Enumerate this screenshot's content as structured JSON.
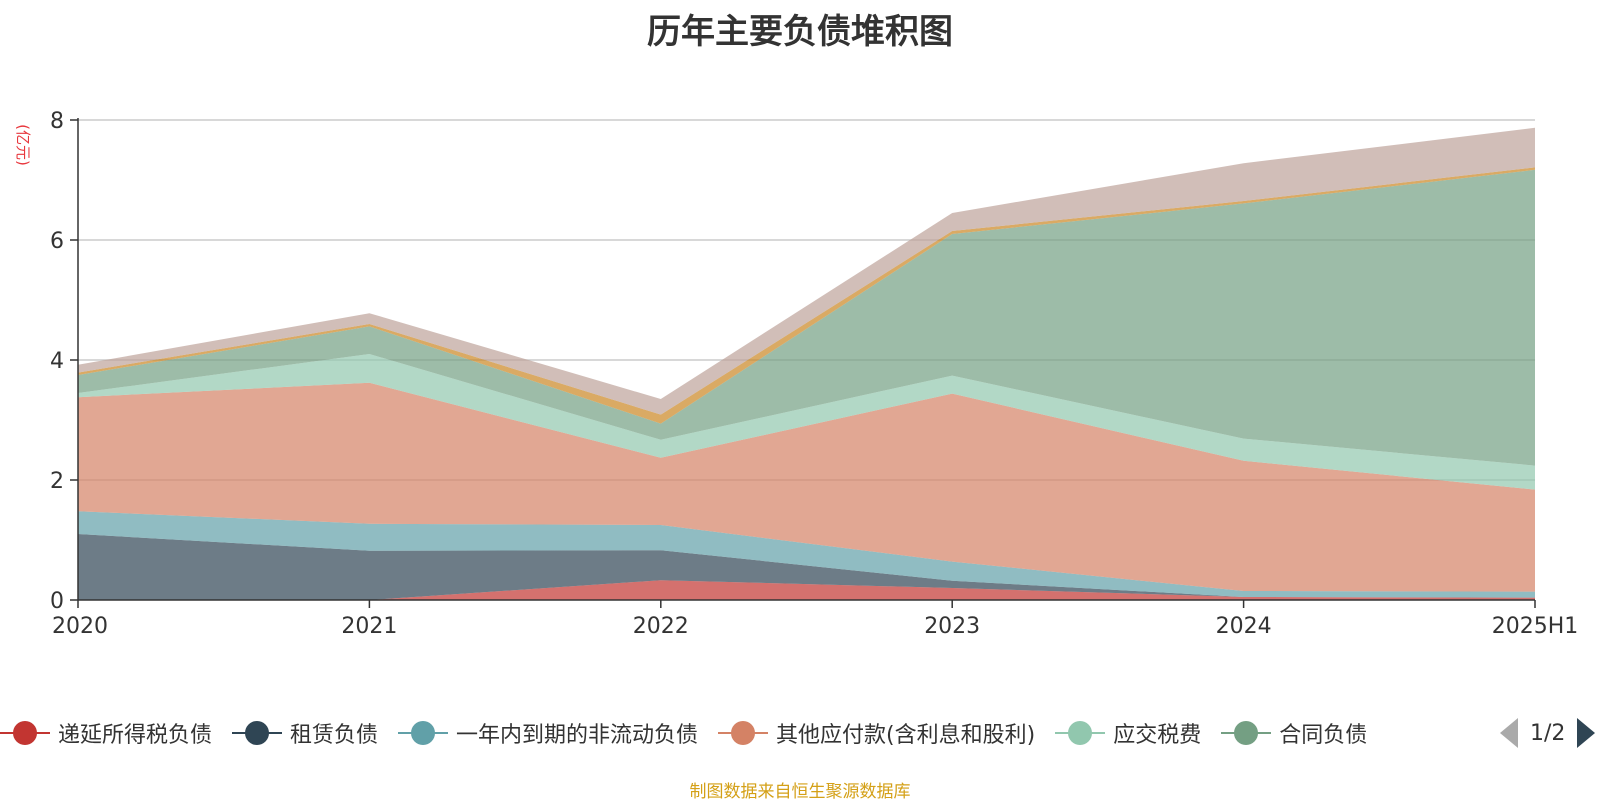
{
  "chart_data": {
    "type": "area",
    "stacked": true,
    "title": "历年主要负债堆积图",
    "ylabel": "(亿元)",
    "xlabel": "",
    "categories": [
      "2020",
      "2021",
      "2022",
      "2023",
      "2024",
      "2025H1"
    ],
    "ylim": [
      0,
      8
    ],
    "yticks": [
      0,
      2,
      4,
      6,
      8
    ],
    "grid": true,
    "legend_position": "bottom",
    "series": [
      {
        "name": "递延所得税负债",
        "color": "#c23531",
        "values": [
          0,
          0,
          0.33,
          0.2,
          0.05,
          0.04
        ]
      },
      {
        "name": "租赁负债",
        "color": "#2f4554",
        "values": [
          1.1,
          0.82,
          0.5,
          0.12,
          0.0,
          0.0
        ]
      },
      {
        "name": "一年内到期的非流动负债",
        "color": "#61a0a8",
        "values": [
          0.38,
          0.45,
          0.42,
          0.32,
          0.1,
          0.1
        ]
      },
      {
        "name": "其他应付款(含利息和股利)",
        "color": "#d48265",
        "values": [
          1.9,
          2.35,
          1.12,
          2.8,
          2.17,
          1.7
        ]
      },
      {
        "name": "应交税费",
        "color": "#91c7ae",
        "values": [
          0.07,
          0.48,
          0.3,
          0.3,
          0.37,
          0.4
        ]
      },
      {
        "name": "合同负债",
        "color": "#749f83",
        "values": [
          0.3,
          0.46,
          0.27,
          2.36,
          3.92,
          4.93
        ]
      },
      {
        "name": "",
        "color": "#ca8622",
        "values": [
          0.04,
          0.04,
          0.15,
          0.05,
          0.04,
          0.04
        ]
      },
      {
        "name": "",
        "color": "#bda29a",
        "values": [
          0.13,
          0.18,
          0.26,
          0.3,
          0.63,
          0.66
        ]
      }
    ]
  },
  "legend": {
    "page_text": "1/2",
    "items": [
      "递延所得税负债",
      "租赁负债",
      "一年内到期的非流动负债",
      "其他应付款(含利息和股利)",
      "应交税费",
      "合同负债"
    ]
  },
  "source_text": "制图数据来自恒生聚源数据库"
}
